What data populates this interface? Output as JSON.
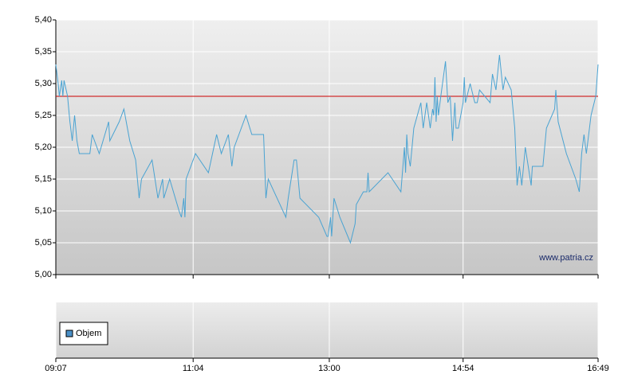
{
  "chart_data": [
    {
      "type": "line",
      "x": [
        "09:07",
        "09:09",
        "09:10",
        "09:12",
        "09:13",
        "09:14",
        "09:17",
        "09:19",
        "09:21",
        "09:23",
        "09:25",
        "09:27",
        "09:36",
        "09:38",
        "09:44",
        "09:52",
        "09:53",
        "10:01",
        "10:05",
        "10:08",
        "10:10",
        "10:15",
        "10:18",
        "10:20",
        "10:29",
        "10:34",
        "10:38",
        "10:39",
        "10:44",
        "10:52",
        "10:54",
        "10:56",
        "10:57",
        "10:58",
        "11:06",
        "11:17",
        "11:24",
        "11:28",
        "11:34",
        "11:37",
        "11:39",
        "11:43",
        "11:49",
        "11:54",
        "12:04",
        "12:06",
        "12:08",
        "12:23",
        "12:25",
        "12:30",
        "12:32",
        "12:35",
        "12:51",
        "12:58",
        "12:59",
        "13:01",
        "13:02",
        "13:04",
        "13:09",
        "13:18",
        "13:22",
        "13:23",
        "13:29",
        "13:32",
        "13:33",
        "13:34",
        "13:50",
        "14:01",
        "14:04",
        "14:05",
        "14:06",
        "14:07",
        "14:09",
        "14:12",
        "14:18",
        "14:20",
        "14:23",
        "14:26",
        "14:28",
        "14:29",
        "14:30",
        "14:31",
        "14:32",
        "14:33",
        "14:35",
        "14:39",
        "14:41",
        "14:43",
        "14:45",
        "14:47",
        "14:48",
        "14:50",
        "14:54",
        "14:55",
        "14:56",
        "15:00",
        "15:04",
        "15:06",
        "15:08",
        "15:17",
        "15:19",
        "15:22",
        "15:25",
        "15:28",
        "15:30",
        "15:35",
        "15:38",
        "15:40",
        "15:42",
        "15:44",
        "15:47",
        "15:52",
        "15:53",
        "16:02",
        "16:05",
        "16:12",
        "16:13",
        "16:15",
        "16:22",
        "16:30",
        "16:33",
        "16:35",
        "16:37",
        "16:39",
        "16:43",
        "16:47",
        "16:49"
      ],
      "series": [
        {
          "color": "#4aa3d2",
          "values": [
            5.33,
            5.3,
            5.28,
            5.305,
            5.28,
            5.305,
            5.28,
            5.24,
            5.21,
            5.25,
            5.21,
            5.19,
            5.19,
            5.22,
            5.19,
            5.24,
            5.21,
            5.24,
            5.26,
            5.23,
            5.21,
            5.18,
            5.12,
            5.15,
            5.18,
            5.12,
            5.15,
            5.12,
            5.15,
            5.1,
            5.09,
            5.12,
            5.09,
            5.15,
            5.19,
            5.16,
            5.22,
            5.19,
            5.22,
            5.17,
            5.2,
            5.22,
            5.25,
            5.22,
            5.22,
            5.12,
            5.15,
            5.09,
            5.12,
            5.18,
            5.18,
            5.12,
            5.09,
            5.06,
            5.06,
            5.09,
            5.06,
            5.12,
            5.09,
            5.05,
            5.08,
            5.11,
            5.13,
            5.13,
            5.16,
            5.13,
            5.16,
            5.13,
            5.2,
            5.16,
            5.22,
            5.19,
            5.17,
            5.23,
            5.27,
            5.23,
            5.27,
            5.23,
            5.26,
            5.25,
            5.31,
            5.24,
            5.28,
            5.25,
            5.28,
            5.335,
            5.27,
            5.28,
            5.21,
            5.27,
            5.23,
            5.23,
            5.27,
            5.31,
            5.27,
            5.3,
            5.27,
            5.27,
            5.29,
            5.27,
            5.315,
            5.29,
            5.345,
            5.29,
            5.31,
            5.29,
            5.23,
            5.14,
            5.17,
            5.14,
            5.2,
            5.14,
            5.17,
            5.17,
            5.23,
            5.26,
            5.29,
            5.24,
            5.19,
            5.15,
            5.13,
            5.19,
            5.22,
            5.19,
            5.25,
            5.28,
            5.33
          ]
        }
      ],
      "xlim": [
        "09:07",
        "16:49"
      ],
      "xticks": [
        "09:07",
        "11:04",
        "13:00",
        "14:54",
        "16:49"
      ],
      "ylim": [
        5.0,
        5.4
      ],
      "yticks": [
        {
          "value": 5.0,
          "label": "5,00"
        },
        {
          "value": 5.05,
          "label": "5,05"
        },
        {
          "value": 5.1,
          "label": "5,10"
        },
        {
          "value": 5.15,
          "label": "5,15"
        },
        {
          "value": 5.2,
          "label": "5,20"
        },
        {
          "value": 5.25,
          "label": "5,25"
        },
        {
          "value": 5.3,
          "label": "5,30"
        },
        {
          "value": 5.35,
          "label": "5,35"
        },
        {
          "value": 5.4,
          "label": "5,40"
        }
      ],
      "reference_line": {
        "value": 5.28,
        "color": "#cc0000"
      },
      "grid": true,
      "annotation": "www.patria.cz"
    },
    {
      "type": "bar",
      "x": [],
      "series": [
        {
          "name": "Objem",
          "color": "#4a90c8",
          "values": []
        }
      ],
      "legend": "left"
    }
  ]
}
